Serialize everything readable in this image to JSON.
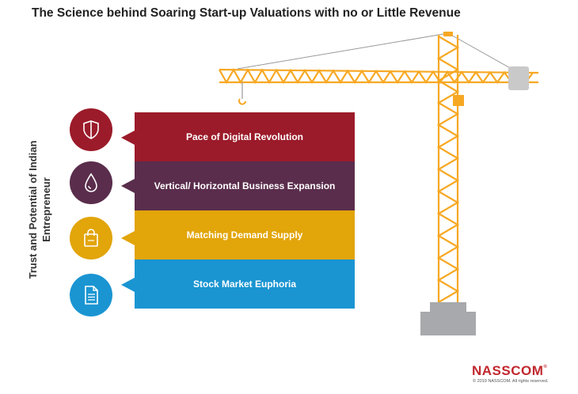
{
  "title": "The Science behind Soaring Start-up Valuations with no or Little Revenue",
  "side_label": {
    "line1": "Trust and Potential of Indian",
    "line2": "Entrepreneur"
  },
  "items": [
    {
      "label": "Pace of Digital Revolution",
      "color": "#9b1b2a",
      "icon": "shield-icon"
    },
    {
      "label": "Vertical/ Horizontal Business Expansion",
      "color": "#5a2d4c",
      "icon": "drop-icon"
    },
    {
      "label": "Matching Demand Supply",
      "color": "#e2a50a",
      "icon": "shopping-bag-icon"
    },
    {
      "label": "Stock Market Euphoria",
      "color": "#1a95d2",
      "icon": "document-icon"
    }
  ],
  "crane_color": "#f7a823",
  "base_color": "#a7a9ac",
  "brand": {
    "name": "NASSCOM",
    "mark": "®",
    "copyright": "© 2019 NASSCOM. All rights reserved."
  }
}
